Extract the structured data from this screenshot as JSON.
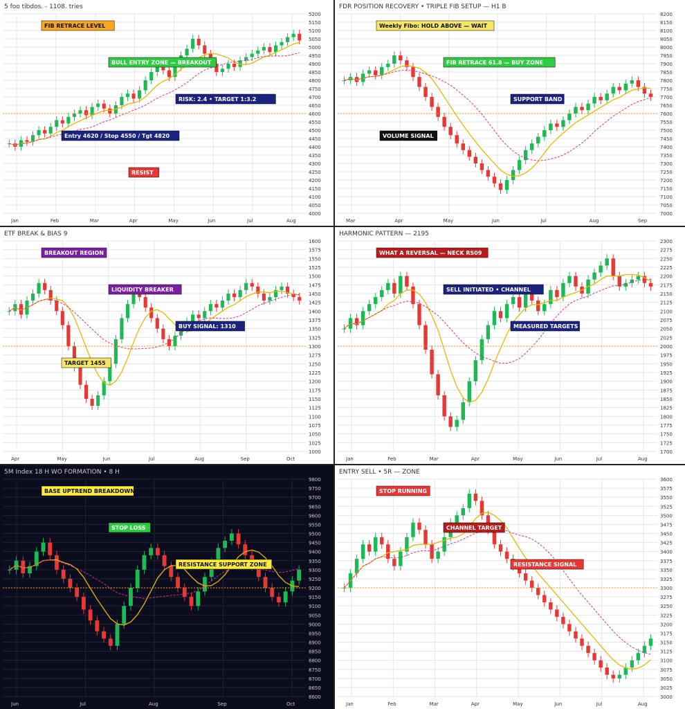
{
  "panels": [
    {
      "id": "p1",
      "theme": "light",
      "chart_data": {
        "type": "candlestick",
        "title": "5 foo tibdos. - 1108. tries",
        "y_ticks": [
          "5200",
          "5150",
          "5100",
          "5050",
          "5000",
          "4950",
          "4900",
          "4850",
          "4800",
          "4750",
          "4700",
          "4650",
          "4600",
          "4550",
          "4500",
          "4450",
          "4400",
          "4350",
          "4300",
          "4250",
          "4200",
          "4150",
          "4100",
          "4050",
          "4000"
        ],
        "x_ticks": [
          "Jan",
          "Feb",
          "Mar",
          "Apr",
          "May",
          "Jun",
          "Jul",
          "Aug"
        ],
        "ylim": [
          4000,
          5200
        ],
        "closes": [
          4420,
          4400,
          4440,
          4430,
          4470,
          4500,
          4480,
          4520,
          4560,
          4540,
          4580,
          4600,
          4620,
          4590,
          4640,
          4660,
          4630,
          4600,
          4650,
          4700,
          4720,
          4690,
          4740,
          4800,
          4850,
          4900,
          4860,
          4820,
          4880,
          4950,
          4990,
          5050,
          5010,
          4960,
          4900,
          4850,
          4870,
          4900,
          4880,
          4920,
          4940,
          4960,
          4980,
          5000,
          4970,
          5010,
          5030,
          5060,
          5080,
          5040
        ],
        "annotations": [
          {
            "text": "FIB RETRACE LEVEL",
            "color": "#f5a623"
          },
          {
            "text": "BULL ENTRY ZONE — BREAKOUT",
            "color": "#2ecc40"
          },
          {
            "text": "RISK: 2.4 • TARGET 1:3.2",
            "color": "#1a237e"
          },
          {
            "text": "Entry 4620 / Stop 4550 / Tgt 4820",
            "color": "#1a237e"
          },
          {
            "text": "RESIST",
            "color": "#e53935"
          }
        ]
      }
    },
    {
      "id": "p2",
      "theme": "light",
      "chart_data": {
        "type": "candlestick",
        "title": "FDR POSITION RECOVERY • TRIPLE FIB SETUP — H1 B",
        "y_ticks": [
          "8200",
          "8150",
          "8100",
          "8050",
          "8000",
          "7950",
          "7900",
          "7850",
          "7800",
          "7750",
          "7700",
          "7650",
          "7600",
          "7550",
          "7500",
          "7450",
          "7400",
          "7350",
          "7300",
          "7250",
          "7200",
          "7150",
          "7100",
          "7050",
          "7000"
        ],
        "x_ticks": [
          "Mar",
          "Apr",
          "May",
          "Jun",
          "Jul",
          "Aug",
          "Sep"
        ],
        "ylim": [
          7000,
          8200
        ],
        "closes": [
          7800,
          7820,
          7790,
          7840,
          7860,
          7830,
          7880,
          7900,
          7950,
          7920,
          7880,
          7820,
          7760,
          7700,
          7640,
          7580,
          7520,
          7470,
          7420,
          7380,
          7340,
          7300,
          7260,
          7220,
          7180,
          7140,
          7200,
          7260,
          7320,
          7380,
          7420,
          7460,
          7500,
          7540,
          7520,
          7560,
          7600,
          7640,
          7620,
          7660,
          7700,
          7680,
          7720,
          7760,
          7740,
          7780,
          7800,
          7760,
          7720,
          7700
        ],
        "annotations": [
          {
            "text": "Weekly Fibo: HOLD ABOVE — WAIT",
            "color": "#f5e663"
          },
          {
            "text": "FIB RETRACE 61.8 — BUY ZONE",
            "color": "#2ecc40"
          },
          {
            "text": "SUPPORT BAND",
            "color": "#1a237e"
          },
          {
            "text": "VOLUME SIGNAL",
            "color": "#111"
          }
        ]
      }
    },
    {
      "id": "p3",
      "theme": "light",
      "chart_data": {
        "type": "candlestick",
        "title": "ETF BREAK & BIAS 9",
        "y_ticks": [
          "1600",
          "1575",
          "1550",
          "1525",
          "1500",
          "1475",
          "1450",
          "1425",
          "1400",
          "1375",
          "1350",
          "1325",
          "1300",
          "1275",
          "1250",
          "1225",
          "1200",
          "1175",
          "1150",
          "1125",
          "1100",
          "1075",
          "1050",
          "1025",
          "1000"
        ],
        "x_ticks": [
          "Apr",
          "May",
          "Jun",
          "Jul",
          "Aug",
          "Sep",
          "Oct"
        ],
        "ylim": [
          1000,
          1600
        ],
        "closes": [
          1400,
          1420,
          1390,
          1430,
          1450,
          1480,
          1460,
          1430,
          1400,
          1360,
          1300,
          1240,
          1190,
          1150,
          1130,
          1160,
          1200,
          1250,
          1320,
          1380,
          1420,
          1450,
          1440,
          1410,
          1380,
          1350,
          1320,
          1300,
          1330,
          1350,
          1370,
          1390,
          1380,
          1400,
          1420,
          1410,
          1430,
          1450,
          1440,
          1460,
          1480,
          1470,
          1450,
          1430,
          1440,
          1460,
          1470,
          1450,
          1440,
          1430
        ],
        "annotations": [
          {
            "text": "BREAKOUT REGION",
            "color": "#7b1fa2"
          },
          {
            "text": "LIQUIDITY BREAKER",
            "color": "#7b1fa2"
          },
          {
            "text": "BUY SIGNAL: 1310",
            "color": "#1a237e"
          },
          {
            "text": "TARGET 1455",
            "color": "#f5e663"
          }
        ]
      }
    },
    {
      "id": "p4",
      "theme": "light",
      "chart_data": {
        "type": "candlestick",
        "title": "HARMONIC PATTERN — 2195",
        "y_ticks": [
          "2300",
          "2275",
          "2250",
          "2225",
          "2200",
          "2175",
          "2150",
          "2125",
          "2100",
          "2075",
          "2050",
          "2025",
          "2000",
          "1975",
          "1950",
          "1925",
          "1900",
          "1875",
          "1850",
          "1825",
          "1800",
          "1775",
          "1750",
          "1725",
          "1700"
        ],
        "x_ticks": [
          "Jan",
          "Feb",
          "Mar",
          "Apr",
          "May",
          "Jun",
          "Jul",
          "Aug"
        ],
        "ylim": [
          1700,
          2300
        ],
        "closes": [
          2050,
          2080,
          2060,
          2100,
          2120,
          2140,
          2160,
          2180,
          2150,
          2200,
          2170,
          2120,
          2060,
          1990,
          1920,
          1860,
          1800,
          1770,
          1790,
          1840,
          1900,
          1960,
          2020,
          2060,
          2100,
          2080,
          2120,
          2140,
          2110,
          2150,
          2130,
          2100,
          2120,
          2160,
          2140,
          2180,
          2200,
          2170,
          2150,
          2190,
          2210,
          2230,
          2250,
          2200,
          2170,
          2180,
          2190,
          2200,
          2180,
          2170
        ],
        "annotations": [
          {
            "text": "WHAT A REVERSAL — NECK RS09",
            "color": "#b71c1c"
          },
          {
            "text": "SELL INITIATED • CHANNEL",
            "color": "#1a237e"
          },
          {
            "text": "MEASURED TARGETS",
            "color": "#1a237e"
          }
        ]
      }
    },
    {
      "id": "p5",
      "theme": "dark",
      "chart_data": {
        "type": "candlestick",
        "title": "5M Index 18 H WO FORMATION • 8 H",
        "y_ticks": [
          "9800",
          "9750",
          "9700",
          "9650",
          "9600",
          "9550",
          "9500",
          "9450",
          "9400",
          "9350",
          "9300",
          "9250",
          "9200",
          "9150",
          "9100",
          "9050",
          "9000",
          "8950",
          "8900",
          "8850",
          "8800",
          "8750",
          "8700",
          "8650",
          "8600"
        ],
        "x_ticks": [
          "Jun",
          "Jul",
          "Aug",
          "Sep",
          "Oct"
        ],
        "ylim": [
          8600,
          9800
        ],
        "closes": [
          9300,
          9350,
          9280,
          9320,
          9400,
          9450,
          9380,
          9300,
          9250,
          9200,
          9150,
          9080,
          9020,
          8960,
          8920,
          8880,
          9000,
          9100,
          9200,
          9300,
          9380,
          9420,
          9380,
          9320,
          9260,
          9200,
          9150,
          9100,
          9180,
          9260,
          9340,
          9420,
          9460,
          9500,
          9440,
          9380,
          9320,
          9260,
          9200,
          9150,
          9120,
          9180,
          9240,
          9300
        ],
        "annotations": [
          {
            "text": "BASE UPTREND BREAKDOWN",
            "color": "#ffeb3b"
          },
          {
            "text": "STOP LOSS",
            "color": "#2ecc40"
          },
          {
            "text": "RESISTANCE SUPPORT ZONE",
            "color": "#ffeb3b"
          }
        ]
      }
    },
    {
      "id": "p6",
      "theme": "light",
      "chart_data": {
        "type": "candlestick",
        "title": "ENTRY SELL • 5R — ZONE",
        "y_ticks": [
          "3600",
          "3575",
          "3550",
          "3525",
          "3500",
          "3475",
          "3450",
          "3425",
          "3400",
          "3375",
          "3350",
          "3325",
          "3300",
          "3275",
          "3250",
          "3225",
          "3200",
          "3175",
          "3150",
          "3125",
          "3100",
          "3075",
          "3050",
          "3025",
          "3000"
        ],
        "x_ticks": [
          "Jan",
          "Feb",
          "Mar",
          "Apr",
          "May",
          "Jun",
          "Jul",
          "Aug"
        ],
        "ylim": [
          3000,
          3600
        ],
        "closes": [
          3300,
          3340,
          3380,
          3420,
          3400,
          3440,
          3420,
          3380,
          3360,
          3400,
          3440,
          3480,
          3460,
          3420,
          3380,
          3400,
          3440,
          3480,
          3500,
          3520,
          3560,
          3540,
          3500,
          3460,
          3420,
          3400,
          3380,
          3360,
          3340,
          3320,
          3300,
          3280,
          3260,
          3240,
          3220,
          3200,
          3180,
          3160,
          3140,
          3120,
          3100,
          3080,
          3060,
          3050,
          3060,
          3080,
          3100,
          3120,
          3140,
          3160
        ],
        "annotations": [
          {
            "text": "STOP RUNNING",
            "color": "#e53935"
          },
          {
            "text": "CHANNEL TARGET",
            "color": "#b71c1c"
          },
          {
            "text": "RESISTANCE SIGNAL",
            "color": "#e53935"
          }
        ]
      }
    }
  ]
}
